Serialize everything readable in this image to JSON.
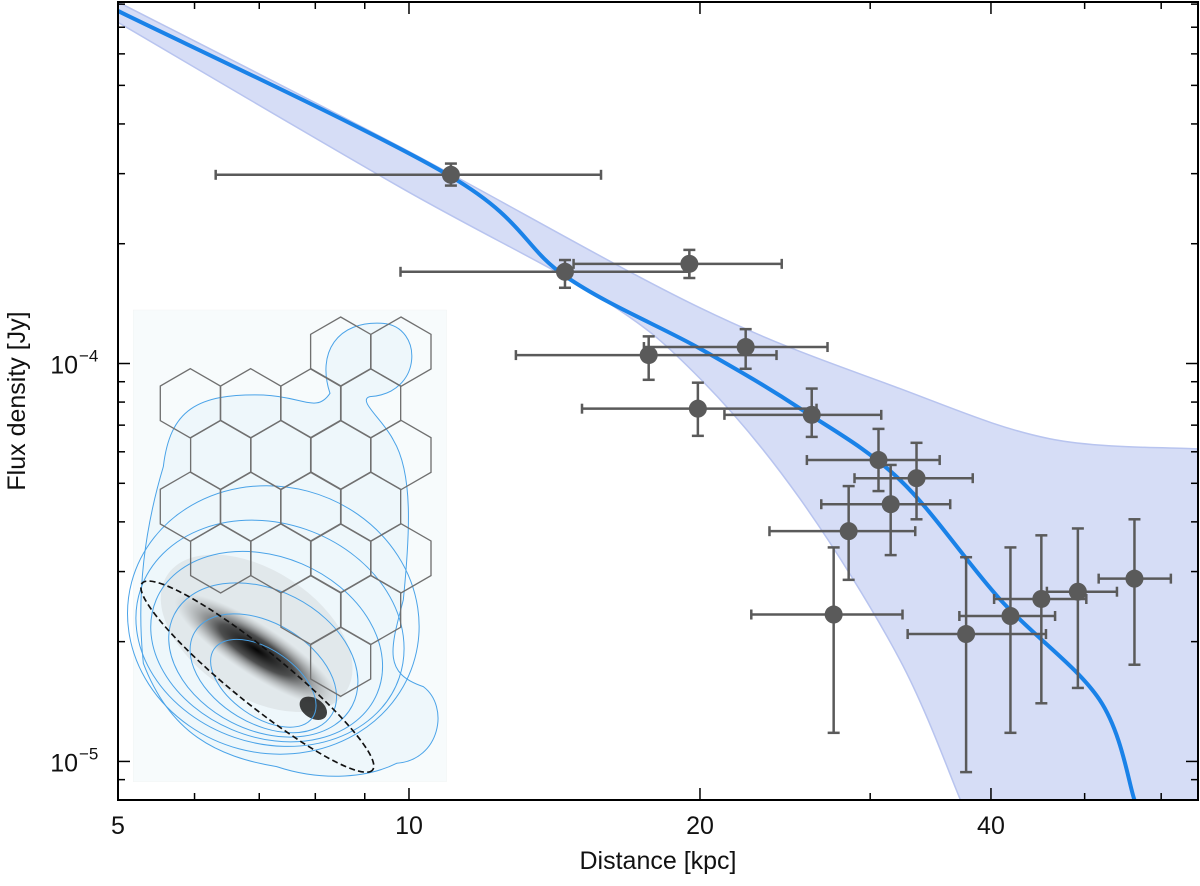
{
  "chart_data": {
    "type": "scatter",
    "title": "",
    "xlabel": "Distance [kpc]",
    "ylabel": "Flux density [Jy]",
    "xscale": "log",
    "yscale": "log",
    "xlim": [
      5,
      65.5
    ],
    "ylim": [
      8e-06,
      0.00081
    ],
    "x_ticks": [
      {
        "value": 5,
        "label": "5"
      },
      {
        "value": 10,
        "label": "10"
      },
      {
        "value": 20,
        "label": "20"
      },
      {
        "value": 40,
        "label": "40"
      }
    ],
    "y_ticks": [
      {
        "value": 1e-05,
        "base": "10",
        "exp": "−5"
      },
      {
        "value": 0.0001,
        "base": "10",
        "exp": "−4"
      }
    ],
    "grid": false,
    "colors": {
      "model": "#1a82e8",
      "band": "#d6ddf6",
      "band_edge": "#b8c4ef",
      "points": "#5a5a5a"
    },
    "points": [
      {
        "x": 11.05,
        "y": 0.000298,
        "xlo": 6.31,
        "xhi": 15.8,
        "ylo": 0.00028,
        "yhi": 0.000318
      },
      {
        "x": 14.5,
        "y": 0.00017,
        "xlo": 9.8,
        "xhi": 19.5,
        "ylo": 0.000155,
        "yhi": 0.000182
      },
      {
        "x": 19.5,
        "y": 0.000178,
        "xlo": 14.8,
        "xhi": 24.3,
        "ylo": 0.000164,
        "yhi": 0.000193
      },
      {
        "x": 17.7,
        "y": 0.000105,
        "xlo": 12.9,
        "xhi": 24.0,
        "ylo": 9.1e-05,
        "yhi": 0.000117
      },
      {
        "x": 22.3,
        "y": 0.00011,
        "xlo": 17.5,
        "xhi": 27.1,
        "ylo": 9.7e-05,
        "yhi": 0.000122
      },
      {
        "x": 19.9,
        "y": 7.7e-05,
        "xlo": 15.1,
        "xhi": 26.4,
        "ylo": 6.58e-05,
        "yhi": 8.95e-05
      },
      {
        "x": 26.1,
        "y": 7.43e-05,
        "xlo": 21.2,
        "xhi": 30.8,
        "ylo": 6.54e-05,
        "yhi": 8.65e-05
      },
      {
        "x": 30.6,
        "y": 5.72e-05,
        "xlo": 25.8,
        "xhi": 35.4,
        "ylo": 4.78e-05,
        "yhi": 6.85e-05
      },
      {
        "x": 33.5,
        "y": 5.15e-05,
        "xlo": 28.9,
        "xhi": 38.3,
        "ylo": 4.06e-05,
        "yhi": 6.32e-05
      },
      {
        "x": 31.5,
        "y": 4.43e-05,
        "xlo": 26.7,
        "xhi": 36.3,
        "ylo": 3.3e-05,
        "yhi": 5.56e-05
      },
      {
        "x": 28.5,
        "y": 3.79e-05,
        "xlo": 23.6,
        "xhi": 33.4,
        "ylo": 2.86e-05,
        "yhi": 4.92e-05
      },
      {
        "x": 27.5,
        "y": 2.34e-05,
        "xlo": 22.6,
        "xhi": 32.4,
        "ylo": 1.18e-05,
        "yhi": 3.45e-05
      },
      {
        "x": 37.7,
        "y": 2.09e-05,
        "xlo": 32.8,
        "xhi": 45.6,
        "ylo": 9.4e-06,
        "yhi": 3.26e-05
      },
      {
        "x": 41.9,
        "y": 2.32e-05,
        "xlo": 37.1,
        "xhi": 46.6,
        "ylo": 1.18e-05,
        "yhi": 3.45e-05
      },
      {
        "x": 45.1,
        "y": 2.56e-05,
        "xlo": 40.3,
        "xhi": 50.2,
        "ylo": 1.4e-05,
        "yhi": 3.7e-05
      },
      {
        "x": 49.2,
        "y": 2.67e-05,
        "xlo": 45.7,
        "xhi": 54.0,
        "ylo": 1.53e-05,
        "yhi": 3.85e-05
      },
      {
        "x": 56.3,
        "y": 2.88e-05,
        "xlo": 51.7,
        "xhi": 61.4,
        "ylo": 1.75e-05,
        "yhi": 4.06e-05
      }
    ],
    "model_curve": {
      "x": [
        5,
        11.05,
        14.5,
        20,
        25.4,
        32.2,
        40.9,
        51.8,
        56.3
      ],
      "y": [
        0.000769,
        0.000295,
        0.000166,
        0.000109,
        7.7e-05,
        5.1e-05,
        2.55e-05,
        1.43e-05,
        8e-06
      ]
    },
    "band_upper": {
      "x": [
        5,
        9.8,
        20,
        32.2,
        46.0,
        65.5
      ],
      "y": [
        0.00081,
        0.00035,
        0.000138,
        8.65e-05,
        6.47e-05,
        6.1e-05
      ]
    },
    "band_lower": {
      "x": [
        5,
        9.8,
        15.8,
        20,
        25.4,
        32.2,
        37.2
      ],
      "y": [
        0.00072,
        0.000277,
        0.000146,
        9.17e-05,
        4.56e-05,
        1.8e-05,
        8e-06
      ]
    },
    "inset": "galaxy image with hexagonal grid, blue contours and dashed ellipse"
  }
}
